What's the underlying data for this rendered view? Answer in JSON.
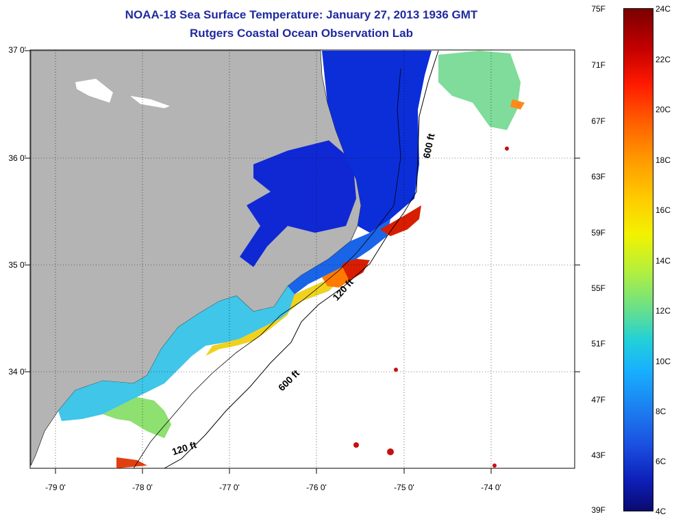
{
  "title": {
    "line1": "NOAA-18 Sea Surface Temperature:  January 27, 2013 1936 GMT",
    "line2": "Rutgers Coastal Ocean Observation Lab"
  },
  "axes": {
    "lat_labels": [
      "37 0'",
      "36 0'",
      "35 0'",
      "34 0'"
    ],
    "lon_labels": [
      "-79 0'",
      "-78 0'",
      "-77 0'",
      "-76 0'",
      "-75 0'",
      "-74 0'"
    ]
  },
  "contours": {
    "label_600_north": "600 ft",
    "label_120_north": "120 ft",
    "label_600_south": "600 ft",
    "label_120_south": "120 ft"
  },
  "colorbar": {
    "fahrenheit": [
      "75F",
      "71F",
      "67F",
      "63F",
      "59F",
      "55F",
      "51F",
      "47F",
      "43F",
      "39F"
    ],
    "celsius": [
      "24C",
      "22C",
      "20C",
      "18C",
      "16C",
      "14C",
      "12C",
      "10C",
      "8C",
      "6C",
      "4C"
    ]
  },
  "colors": {
    "land": "#b4b4b4",
    "title": "#1f2a9e",
    "cold": "#0a1ed2",
    "warm": "#d21e00"
  }
}
